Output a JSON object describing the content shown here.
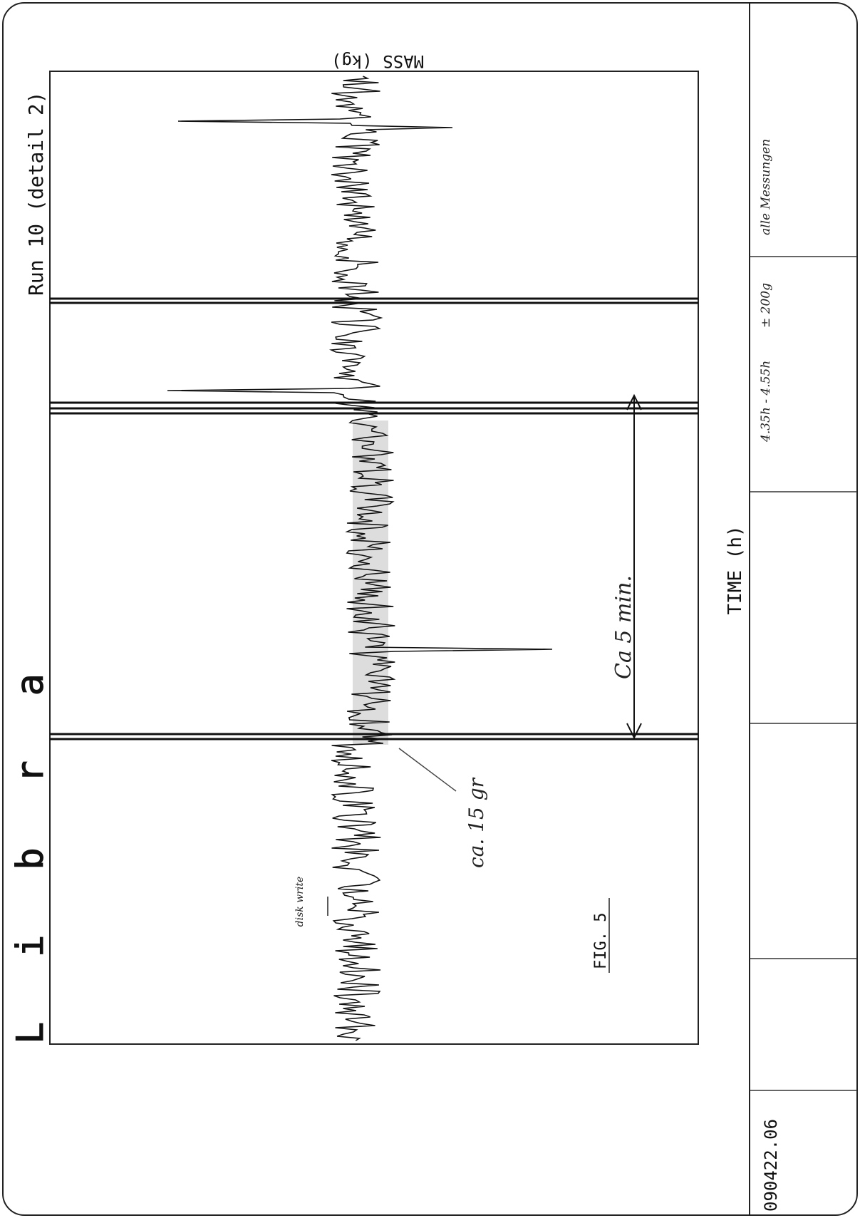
{
  "logo": "Libra",
  "chart": {
    "title": "Run 10 (detail 2)",
    "y_axis_label": "MASS (kg)",
    "x_axis_label": "TIME (h)",
    "figure_label": "FIG. 5"
  },
  "annotations": {
    "duration": "Ca 5 min.",
    "step": "ca. 15 gr",
    "disk_write": "disk write"
  },
  "footer": {
    "document_id": "090422.06",
    "time_range": "4.35h - 4.55h",
    "tolerance": "± 200g",
    "note": "alle Messungen"
  }
}
